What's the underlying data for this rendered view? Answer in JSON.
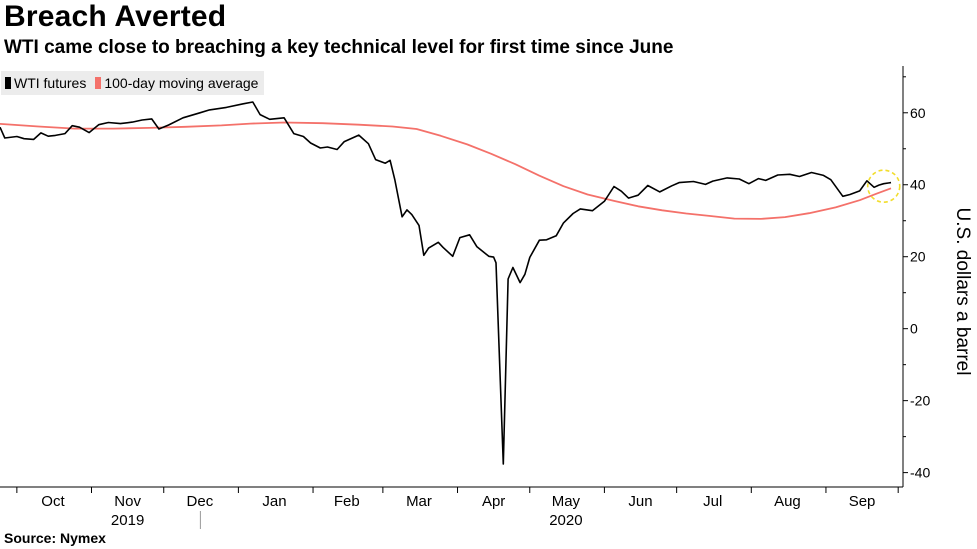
{
  "title": "Breach Averted",
  "subtitle": "WTI came close to breaching a key technical level for first time since June",
  "source": "Source: Nymex",
  "legend": [
    {
      "name": "WTI futures",
      "color": "#000000"
    },
    {
      "name": "100-day moving average",
      "color": "#f4716a"
    }
  ],
  "colors": {
    "highlight_circle": "#f2dd2c"
  },
  "chart_data": {
    "type": "line",
    "ylabel": "U.S. dollars a barrel",
    "ylim": [
      -44,
      73
    ],
    "yticks": [
      60,
      40,
      20,
      0,
      -20,
      -40
    ],
    "grid": false,
    "legend_placement": "top-left",
    "xlim": [
      "2019-09-24",
      "2020-10-03"
    ],
    "x_month_labels": [
      {
        "label": "Oct",
        "date": "2019-10-16"
      },
      {
        "label": "Nov",
        "date": "2019-11-16"
      },
      {
        "label": "Dec",
        "date": "2019-12-16"
      },
      {
        "label": "Jan",
        "date": "2020-01-16"
      },
      {
        "label": "Feb",
        "date": "2020-02-15"
      },
      {
        "label": "Mar",
        "date": "2020-03-16"
      },
      {
        "label": "Apr",
        "date": "2020-04-16"
      },
      {
        "label": "May",
        "date": "2020-05-16"
      },
      {
        "label": "Jun",
        "date": "2020-06-16"
      },
      {
        "label": "Jul",
        "date": "2020-07-16"
      },
      {
        "label": "Aug",
        "date": "2020-08-16"
      },
      {
        "label": "Sep",
        "date": "2020-09-16"
      }
    ],
    "x_year_labels": [
      {
        "label": "2019",
        "date": "2019-11-16"
      },
      {
        "label": "2020",
        "date": "2020-05-16"
      }
    ],
    "year_divider": "2020-01-01",
    "annotations": [
      {
        "type": "circle",
        "date": "2020-09-25",
        "value": 39.6
      }
    ],
    "series": [
      {
        "name": "WTI futures",
        "color": "#000000",
        "points": [
          [
            "2019-09-24",
            56.0
          ],
          [
            "2019-09-26",
            53.0
          ],
          [
            "2019-10-01",
            53.4
          ],
          [
            "2019-10-04",
            52.8
          ],
          [
            "2019-10-08",
            52.6
          ],
          [
            "2019-10-11",
            54.4
          ],
          [
            "2019-10-14",
            53.5
          ],
          [
            "2019-10-17",
            53.7
          ],
          [
            "2019-10-21",
            54.2
          ],
          [
            "2019-10-24",
            56.4
          ],
          [
            "2019-10-27",
            56.0
          ],
          [
            "2019-10-31",
            54.5
          ],
          [
            "2019-11-04",
            56.7
          ],
          [
            "2019-11-08",
            57.3
          ],
          [
            "2019-11-13",
            57.0
          ],
          [
            "2019-11-18",
            57.4
          ],
          [
            "2019-11-22",
            58.0
          ],
          [
            "2019-11-26",
            58.3
          ],
          [
            "2019-11-29",
            55.5
          ],
          [
            "2019-12-03",
            56.6
          ],
          [
            "2019-12-09",
            58.6
          ],
          [
            "2019-12-16",
            60.0
          ],
          [
            "2019-12-20",
            60.8
          ],
          [
            "2019-12-27",
            61.5
          ],
          [
            "2020-01-03",
            62.5
          ],
          [
            "2020-01-07",
            63.0
          ],
          [
            "2020-01-10",
            59.5
          ],
          [
            "2020-01-14",
            58.2
          ],
          [
            "2020-01-20",
            58.6
          ],
          [
            "2020-01-24",
            54.2
          ],
          [
            "2020-01-28",
            53.4
          ],
          [
            "2020-01-31",
            51.6
          ],
          [
            "2020-02-04",
            50.2
          ],
          [
            "2020-02-07",
            50.5
          ],
          [
            "2020-02-11",
            49.8
          ],
          [
            "2020-02-14",
            52.0
          ],
          [
            "2020-02-20",
            53.8
          ],
          [
            "2020-02-24",
            51.4
          ],
          [
            "2020-02-27",
            47.0
          ],
          [
            "2020-03-02",
            46.0
          ],
          [
            "2020-03-04",
            46.8
          ],
          [
            "2020-03-06",
            41.3
          ],
          [
            "2020-03-09",
            31.1
          ],
          [
            "2020-03-11",
            33.0
          ],
          [
            "2020-03-13",
            31.7
          ],
          [
            "2020-03-16",
            28.7
          ],
          [
            "2020-03-18",
            20.4
          ],
          [
            "2020-03-20",
            22.4
          ],
          [
            "2020-03-24",
            24.0
          ],
          [
            "2020-03-26",
            22.6
          ],
          [
            "2020-03-30",
            20.1
          ],
          [
            "2020-04-02",
            25.3
          ],
          [
            "2020-04-06",
            26.1
          ],
          [
            "2020-04-09",
            22.8
          ],
          [
            "2020-04-14",
            20.1
          ],
          [
            "2020-04-16",
            19.9
          ],
          [
            "2020-04-17",
            18.3
          ],
          [
            "2020-04-20",
            -37.6
          ],
          [
            "2020-04-22",
            13.8
          ],
          [
            "2020-04-24",
            17.0
          ],
          [
            "2020-04-27",
            12.8
          ],
          [
            "2020-04-29",
            15.1
          ],
          [
            "2020-05-01",
            19.8
          ],
          [
            "2020-05-05",
            24.6
          ],
          [
            "2020-05-08",
            24.7
          ],
          [
            "2020-05-12",
            25.8
          ],
          [
            "2020-05-15",
            29.4
          ],
          [
            "2020-05-19",
            32.0
          ],
          [
            "2020-05-22",
            33.3
          ],
          [
            "2020-05-27",
            32.8
          ],
          [
            "2020-06-01",
            35.4
          ],
          [
            "2020-06-05",
            39.5
          ],
          [
            "2020-06-08",
            38.2
          ],
          [
            "2020-06-11",
            36.3
          ],
          [
            "2020-06-15",
            37.1
          ],
          [
            "2020-06-19",
            39.8
          ],
          [
            "2020-06-24",
            38.0
          ],
          [
            "2020-06-29",
            39.7
          ],
          [
            "2020-07-02",
            40.6
          ],
          [
            "2020-07-08",
            40.9
          ],
          [
            "2020-07-13",
            40.1
          ],
          [
            "2020-07-16",
            41.0
          ],
          [
            "2020-07-22",
            41.9
          ],
          [
            "2020-07-27",
            41.6
          ],
          [
            "2020-07-31",
            40.3
          ],
          [
            "2020-08-04",
            41.7
          ],
          [
            "2020-08-07",
            41.2
          ],
          [
            "2020-08-12",
            42.7
          ],
          [
            "2020-08-17",
            42.9
          ],
          [
            "2020-08-21",
            42.3
          ],
          [
            "2020-08-26",
            43.4
          ],
          [
            "2020-08-31",
            42.6
          ],
          [
            "2020-09-03",
            41.4
          ],
          [
            "2020-09-08",
            36.8
          ],
          [
            "2020-09-11",
            37.3
          ],
          [
            "2020-09-15",
            38.3
          ],
          [
            "2020-09-18",
            41.1
          ],
          [
            "2020-09-21",
            39.3
          ],
          [
            "2020-09-23",
            39.9
          ],
          [
            "2020-09-25",
            40.3
          ],
          [
            "2020-09-28",
            40.6
          ]
        ]
      },
      {
        "name": "100-day moving average",
        "color": "#f4716a",
        "points": [
          [
            "2019-09-24",
            56.9
          ],
          [
            "2019-10-10",
            56.2
          ],
          [
            "2019-10-25",
            55.6
          ],
          [
            "2019-11-10",
            55.6
          ],
          [
            "2019-11-25",
            55.8
          ],
          [
            "2019-12-10",
            56.1
          ],
          [
            "2019-12-25",
            56.5
          ],
          [
            "2020-01-06",
            57.0
          ],
          [
            "2020-01-20",
            57.3
          ],
          [
            "2020-02-05",
            57.1
          ],
          [
            "2020-02-20",
            56.7
          ],
          [
            "2020-03-05",
            56.2
          ],
          [
            "2020-03-15",
            55.5
          ],
          [
            "2020-03-25",
            53.6
          ],
          [
            "2020-04-05",
            51.2
          ],
          [
            "2020-04-15",
            48.6
          ],
          [
            "2020-04-25",
            45.7
          ],
          [
            "2020-05-05",
            42.5
          ],
          [
            "2020-05-15",
            39.6
          ],
          [
            "2020-05-25",
            37.3
          ],
          [
            "2020-06-05",
            35.5
          ],
          [
            "2020-06-15",
            34.0
          ],
          [
            "2020-06-25",
            32.9
          ],
          [
            "2020-07-05",
            32.0
          ],
          [
            "2020-07-15",
            31.3
          ],
          [
            "2020-07-25",
            30.6
          ],
          [
            "2020-08-05",
            30.5
          ],
          [
            "2020-08-15",
            31.0
          ],
          [
            "2020-08-25",
            32.1
          ],
          [
            "2020-09-05",
            33.7
          ],
          [
            "2020-09-15",
            35.7
          ],
          [
            "2020-09-22",
            37.5
          ],
          [
            "2020-09-28",
            39.0
          ]
        ]
      }
    ]
  }
}
